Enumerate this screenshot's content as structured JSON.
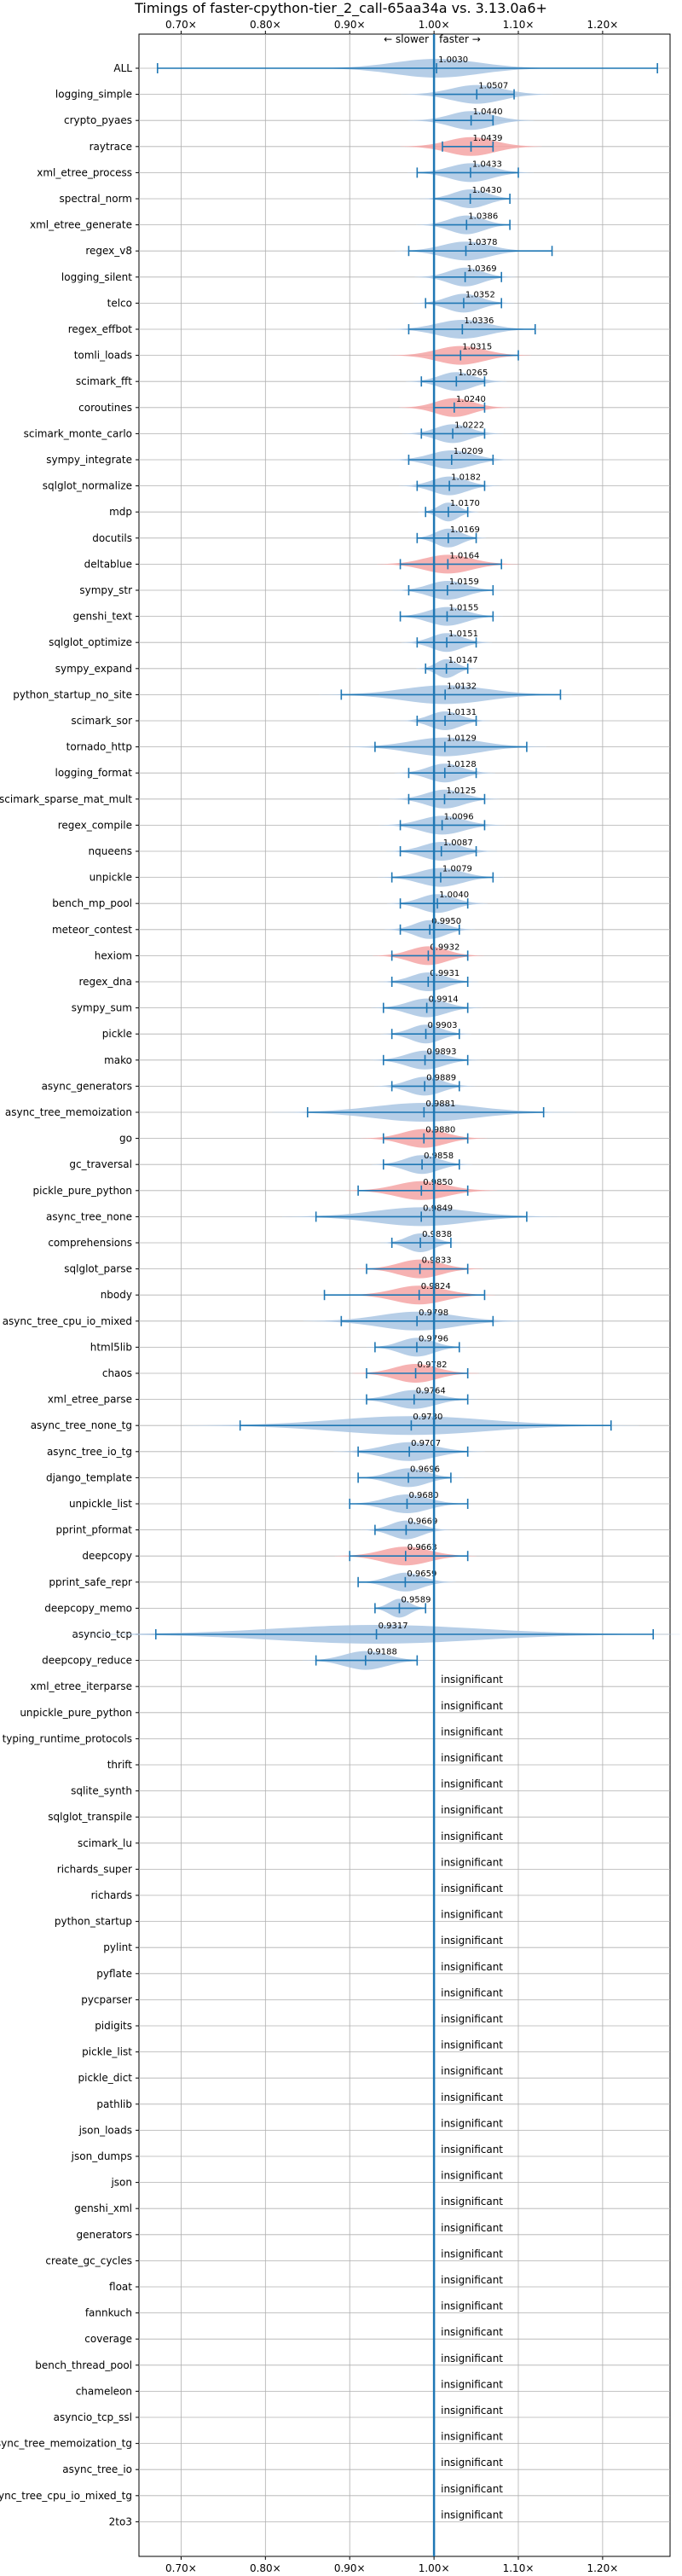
{
  "chart_data": {
    "type": "violin",
    "title": "Timings of faster-cpython-tier_2_call-65aa34a vs. 3.13.0a6+",
    "direction_slower": "← slower",
    "direction_faster": "faster →",
    "xlim": [
      0.65,
      1.28
    ],
    "x_ticks": [
      {
        "value": 0.7,
        "label": "0.70×"
      },
      {
        "value": 0.8,
        "label": "0.80×"
      },
      {
        "value": 0.9,
        "label": "0.90×"
      },
      {
        "value": 1.0,
        "label": "1.00×"
      },
      {
        "value": 1.1,
        "label": "1.10×"
      },
      {
        "value": 1.2,
        "label": "1.20×"
      }
    ],
    "grid": true,
    "colors": {
      "normal": "#a9c6e3",
      "highlight": "#f4a4a4",
      "line": "#1f77b4",
      "grid": "#b0b0b0"
    },
    "benchmarks": [
      {
        "name": "ALL",
        "value": 1.003,
        "label": "1.0030",
        "lo": 0.672,
        "hi": 1.265,
        "spread": 0.05,
        "highlight": false
      },
      {
        "name": "logging_simple",
        "value": 1.0507,
        "label": "1.0507",
        "lo": 1.0,
        "hi": 1.095,
        "spread": 0.03,
        "highlight": false
      },
      {
        "name": "crypto_pyaes",
        "value": 1.044,
        "label": "1.0440",
        "lo": 1.0,
        "hi": 1.07,
        "spread": 0.025,
        "highlight": false
      },
      {
        "name": "raytrace",
        "value": 1.0439,
        "label": "1.0439",
        "lo": 1.01,
        "hi": 1.07,
        "spread": 0.028,
        "highlight": true
      },
      {
        "name": "xml_etree_process",
        "value": 1.0433,
        "label": "1.0433",
        "lo": 0.98,
        "hi": 1.1,
        "spread": 0.025,
        "highlight": false
      },
      {
        "name": "spectral_norm",
        "value": 1.043,
        "label": "1.0430",
        "lo": 1.0,
        "hi": 1.09,
        "spread": 0.02,
        "highlight": false
      },
      {
        "name": "xml_etree_generate",
        "value": 1.0386,
        "label": "1.0386",
        "lo": 1.0,
        "hi": 1.09,
        "spread": 0.02,
        "highlight": false
      },
      {
        "name": "regex_v8",
        "value": 1.0378,
        "label": "1.0378",
        "lo": 0.97,
        "hi": 1.14,
        "spread": 0.028,
        "highlight": false
      },
      {
        "name": "logging_silent",
        "value": 1.0369,
        "label": "1.0369",
        "lo": 1.0,
        "hi": 1.08,
        "spread": 0.02,
        "highlight": false
      },
      {
        "name": "telco",
        "value": 1.0352,
        "label": "1.0352",
        "lo": 0.99,
        "hi": 1.08,
        "spread": 0.02,
        "highlight": false
      },
      {
        "name": "regex_effbot",
        "value": 1.0336,
        "label": "1.0336",
        "lo": 0.97,
        "hi": 1.12,
        "spread": 0.03,
        "highlight": false
      },
      {
        "name": "tomli_loads",
        "value": 1.0315,
        "label": "1.0315",
        "lo": 1.0,
        "hi": 1.1,
        "spread": 0.028,
        "highlight": true
      },
      {
        "name": "scimark_fft",
        "value": 1.0265,
        "label": "1.0265",
        "lo": 0.985,
        "hi": 1.06,
        "spread": 0.02,
        "highlight": false
      },
      {
        "name": "coroutines",
        "value": 1.024,
        "label": "1.0240",
        "lo": 1.0,
        "hi": 1.06,
        "spread": 0.022,
        "highlight": true
      },
      {
        "name": "scimark_monte_carlo",
        "value": 1.0222,
        "label": "1.0222",
        "lo": 0.985,
        "hi": 1.06,
        "spread": 0.02,
        "highlight": false
      },
      {
        "name": "sympy_integrate",
        "value": 1.0209,
        "label": "1.0209",
        "lo": 0.97,
        "hi": 1.07,
        "spread": 0.025,
        "highlight": false
      },
      {
        "name": "sqlglot_normalize",
        "value": 1.0182,
        "label": "1.0182",
        "lo": 0.98,
        "hi": 1.06,
        "spread": 0.02,
        "highlight": false
      },
      {
        "name": "mdp",
        "value": 1.017,
        "label": "1.0170",
        "lo": 0.99,
        "hi": 1.04,
        "spread": 0.012,
        "highlight": false
      },
      {
        "name": "docutils",
        "value": 1.0169,
        "label": "1.0169",
        "lo": 0.98,
        "hi": 1.05,
        "spread": 0.015,
        "highlight": false
      },
      {
        "name": "deltablue",
        "value": 1.0164,
        "label": "1.0164",
        "lo": 0.96,
        "hi": 1.08,
        "spread": 0.028,
        "highlight": true
      },
      {
        "name": "sympy_str",
        "value": 1.0159,
        "label": "1.0159",
        "lo": 0.97,
        "hi": 1.07,
        "spread": 0.022,
        "highlight": false
      },
      {
        "name": "genshi_text",
        "value": 1.0155,
        "label": "1.0155",
        "lo": 0.96,
        "hi": 1.07,
        "spread": 0.022,
        "highlight": false
      },
      {
        "name": "sqlglot_optimize",
        "value": 1.0151,
        "label": "1.0151",
        "lo": 0.98,
        "hi": 1.05,
        "spread": 0.018,
        "highlight": false
      },
      {
        "name": "sympy_expand",
        "value": 1.0147,
        "label": "1.0147",
        "lo": 0.99,
        "hi": 1.04,
        "spread": 0.012,
        "highlight": false
      },
      {
        "name": "python_startup_no_site",
        "value": 1.0132,
        "label": "1.0132",
        "lo": 0.89,
        "hi": 1.15,
        "spread": 0.05,
        "highlight": false
      },
      {
        "name": "scimark_sor",
        "value": 1.0131,
        "label": "1.0131",
        "lo": 0.98,
        "hi": 1.05,
        "spread": 0.018,
        "highlight": false
      },
      {
        "name": "tornado_http",
        "value": 1.0129,
        "label": "1.0129",
        "lo": 0.93,
        "hi": 1.11,
        "spread": 0.04,
        "highlight": false
      },
      {
        "name": "logging_format",
        "value": 1.0128,
        "label": "1.0128",
        "lo": 0.97,
        "hi": 1.05,
        "spread": 0.02,
        "highlight": false
      },
      {
        "name": "scimark_sparse_mat_mult",
        "value": 1.0125,
        "label": "1.0125",
        "lo": 0.97,
        "hi": 1.06,
        "spread": 0.022,
        "highlight": false
      },
      {
        "name": "regex_compile",
        "value": 1.0096,
        "label": "1.0096",
        "lo": 0.96,
        "hi": 1.06,
        "spread": 0.025,
        "highlight": false
      },
      {
        "name": "nqueens",
        "value": 1.0087,
        "label": "1.0087",
        "lo": 0.96,
        "hi": 1.05,
        "spread": 0.022,
        "highlight": false
      },
      {
        "name": "unpickle",
        "value": 1.0079,
        "label": "1.0079",
        "lo": 0.95,
        "hi": 1.07,
        "spread": 0.025,
        "highlight": false
      },
      {
        "name": "bench_mp_pool",
        "value": 1.004,
        "label": "1.0040",
        "lo": 0.96,
        "hi": 1.04,
        "spread": 0.02,
        "highlight": false
      },
      {
        "name": "meteor_contest",
        "value": 0.995,
        "label": "0.9950",
        "lo": 0.96,
        "hi": 1.03,
        "spread": 0.018,
        "highlight": false
      },
      {
        "name": "hexiom",
        "value": 0.9932,
        "label": "0.9932",
        "lo": 0.95,
        "hi": 1.04,
        "spread": 0.022,
        "highlight": true
      },
      {
        "name": "regex_dna",
        "value": 0.9931,
        "label": "0.9931",
        "lo": 0.95,
        "hi": 1.04,
        "spread": 0.02,
        "highlight": false
      },
      {
        "name": "sympy_sum",
        "value": 0.9914,
        "label": "0.9914",
        "lo": 0.94,
        "hi": 1.04,
        "spread": 0.022,
        "highlight": false
      },
      {
        "name": "pickle",
        "value": 0.9903,
        "label": "0.9903",
        "lo": 0.95,
        "hi": 1.03,
        "spread": 0.018,
        "highlight": false
      },
      {
        "name": "mako",
        "value": 0.9893,
        "label": "0.9893",
        "lo": 0.94,
        "hi": 1.04,
        "spread": 0.022,
        "highlight": false
      },
      {
        "name": "async_generators",
        "value": 0.9889,
        "label": "0.9889",
        "lo": 0.95,
        "hi": 1.03,
        "spread": 0.02,
        "highlight": false
      },
      {
        "name": "async_tree_memoization",
        "value": 0.9881,
        "label": "0.9881",
        "lo": 0.85,
        "hi": 1.13,
        "spread": 0.06,
        "highlight": false
      },
      {
        "name": "go",
        "value": 0.988,
        "label": "0.9880",
        "lo": 0.94,
        "hi": 1.04,
        "spread": 0.025,
        "highlight": true
      },
      {
        "name": "gc_traversal",
        "value": 0.9858,
        "label": "0.9858",
        "lo": 0.94,
        "hi": 1.03,
        "spread": 0.02,
        "highlight": false
      },
      {
        "name": "pickle_pure_python",
        "value": 0.985,
        "label": "0.9850",
        "lo": 0.91,
        "hi": 1.04,
        "spread": 0.03,
        "highlight": true
      },
      {
        "name": "async_tree_none",
        "value": 0.9849,
        "label": "0.9849",
        "lo": 0.86,
        "hi": 1.11,
        "spread": 0.055,
        "highlight": false
      },
      {
        "name": "comprehensions",
        "value": 0.9838,
        "label": "0.9838",
        "lo": 0.95,
        "hi": 1.02,
        "spread": 0.016,
        "highlight": false
      },
      {
        "name": "sqlglot_parse",
        "value": 0.9833,
        "label": "0.9833",
        "lo": 0.92,
        "hi": 1.04,
        "spread": 0.025,
        "highlight": true
      },
      {
        "name": "nbody",
        "value": 0.9824,
        "label": "0.9824",
        "lo": 0.87,
        "hi": 1.06,
        "spread": 0.03,
        "highlight": true
      },
      {
        "name": "async_tree_cpu_io_mixed",
        "value": 0.9798,
        "label": "0.9798",
        "lo": 0.89,
        "hi": 1.07,
        "spread": 0.045,
        "highlight": false
      },
      {
        "name": "html5lib",
        "value": 0.9796,
        "label": "0.9796",
        "lo": 0.93,
        "hi": 1.03,
        "spread": 0.02,
        "highlight": false
      },
      {
        "name": "chaos",
        "value": 0.9782,
        "label": "0.9782",
        "lo": 0.92,
        "hi": 1.04,
        "spread": 0.025,
        "highlight": true
      },
      {
        "name": "xml_etree_parse",
        "value": 0.9764,
        "label": "0.9764",
        "lo": 0.92,
        "hi": 1.04,
        "spread": 0.025,
        "highlight": false
      },
      {
        "name": "async_tree_none_tg",
        "value": 0.973,
        "label": "0.9730",
        "lo": 0.77,
        "hi": 1.21,
        "spread": 0.09,
        "highlight": false
      },
      {
        "name": "async_tree_io_tg",
        "value": 0.9707,
        "label": "0.9707",
        "lo": 0.91,
        "hi": 1.04,
        "spread": 0.03,
        "highlight": false
      },
      {
        "name": "django_template",
        "value": 0.9696,
        "label": "0.9696",
        "lo": 0.91,
        "hi": 1.02,
        "spread": 0.022,
        "highlight": false
      },
      {
        "name": "unpickle_list",
        "value": 0.968,
        "label": "0.9680",
        "lo": 0.9,
        "hi": 1.04,
        "spread": 0.025,
        "highlight": false
      },
      {
        "name": "pprint_pformat",
        "value": 0.9669,
        "label": "0.9669",
        "lo": 0.93,
        "hi": 1.0,
        "spread": 0.018,
        "highlight": false
      },
      {
        "name": "deepcopy",
        "value": 0.9663,
        "label": "0.9663",
        "lo": 0.9,
        "hi": 1.04,
        "spread": 0.028,
        "highlight": true
      },
      {
        "name": "pprint_safe_repr",
        "value": 0.9659,
        "label": "0.9659",
        "lo": 0.91,
        "hi": 1.0,
        "spread": 0.02,
        "highlight": false
      },
      {
        "name": "deepcopy_memo",
        "value": 0.9589,
        "label": "0.9589",
        "lo": 0.93,
        "hi": 0.99,
        "spread": 0.012,
        "highlight": false
      },
      {
        "name": "asyncio_tcp",
        "value": 0.9317,
        "label": "0.9317",
        "lo": 0.67,
        "hi": 1.26,
        "spread": 0.12,
        "highlight": false
      },
      {
        "name": "deepcopy_reduce",
        "value": 0.9188,
        "label": "0.9188",
        "lo": 0.86,
        "hi": 0.98,
        "spread": 0.025,
        "highlight": false
      },
      {
        "name": "xml_etree_iterparse",
        "value": null,
        "label": "insignificant"
      },
      {
        "name": "unpickle_pure_python",
        "value": null,
        "label": "insignificant"
      },
      {
        "name": "typing_runtime_protocols",
        "value": null,
        "label": "insignificant"
      },
      {
        "name": "thrift",
        "value": null,
        "label": "insignificant"
      },
      {
        "name": "sqlite_synth",
        "value": null,
        "label": "insignificant"
      },
      {
        "name": "sqlglot_transpile",
        "value": null,
        "label": "insignificant"
      },
      {
        "name": "scimark_lu",
        "value": null,
        "label": "insignificant"
      },
      {
        "name": "richards_super",
        "value": null,
        "label": "insignificant"
      },
      {
        "name": "richards",
        "value": null,
        "label": "insignificant"
      },
      {
        "name": "python_startup",
        "value": null,
        "label": "insignificant"
      },
      {
        "name": "pylint",
        "value": null,
        "label": "insignificant"
      },
      {
        "name": "pyflate",
        "value": null,
        "label": "insignificant"
      },
      {
        "name": "pycparser",
        "value": null,
        "label": "insignificant"
      },
      {
        "name": "pidigits",
        "value": null,
        "label": "insignificant"
      },
      {
        "name": "pickle_list",
        "value": null,
        "label": "insignificant"
      },
      {
        "name": "pickle_dict",
        "value": null,
        "label": "insignificant"
      },
      {
        "name": "pathlib",
        "value": null,
        "label": "insignificant"
      },
      {
        "name": "json_loads",
        "value": null,
        "label": "insignificant"
      },
      {
        "name": "json_dumps",
        "value": null,
        "label": "insignificant"
      },
      {
        "name": "json",
        "value": null,
        "label": "insignificant"
      },
      {
        "name": "genshi_xml",
        "value": null,
        "label": "insignificant"
      },
      {
        "name": "generators",
        "value": null,
        "label": "insignificant"
      },
      {
        "name": "create_gc_cycles",
        "value": null,
        "label": "insignificant"
      },
      {
        "name": "float",
        "value": null,
        "label": "insignificant"
      },
      {
        "name": "fannkuch",
        "value": null,
        "label": "insignificant"
      },
      {
        "name": "coverage",
        "value": null,
        "label": "insignificant"
      },
      {
        "name": "bench_thread_pool",
        "value": null,
        "label": "insignificant"
      },
      {
        "name": "chameleon",
        "value": null,
        "label": "insignificant"
      },
      {
        "name": "asyncio_tcp_ssl",
        "value": null,
        "label": "insignificant"
      },
      {
        "name": "async_tree_memoization_tg",
        "value": null,
        "label": "insignificant"
      },
      {
        "name": "async_tree_io",
        "value": null,
        "label": "insignificant"
      },
      {
        "name": "async_tree_cpu_io_mixed_tg",
        "value": null,
        "label": "insignificant"
      },
      {
        "name": "2to3",
        "value": null,
        "label": "insignificant"
      }
    ]
  }
}
